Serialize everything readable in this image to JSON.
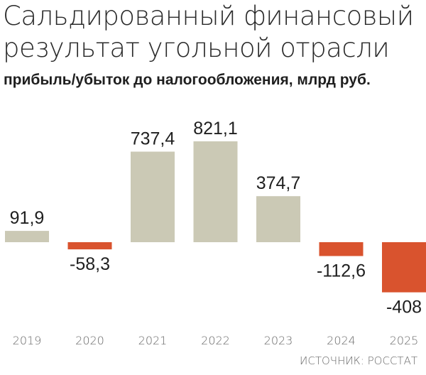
{
  "title": "Сальдированный финансовый результат угольной отрасли",
  "subtitle": "прибыль/убыток до налогообложения, млрд руб.",
  "source": "ИСТОЧНИК: РОССТАТ",
  "colors": {
    "positive": "#cbc9b5",
    "negative": "#d9532e"
  },
  "chart_data": {
    "type": "bar",
    "title": "Сальдированный финансовый результат угольной отрасли",
    "ylabel": "прибыль/убыток до налогообложения, млрд руб.",
    "xlabel": "",
    "categories": [
      "2019",
      "2020",
      "2021",
      "2022",
      "2023",
      "2024",
      "2025"
    ],
    "values": [
      91.9,
      -58.3,
      737.4,
      821.1,
      374.7,
      -112.6,
      -408
    ],
    "value_labels": [
      "91,9",
      "-58,3",
      "737,4",
      "821,1",
      "374,7",
      "-112,6",
      "-408"
    ],
    "ylim": [
      -408,
      821.1
    ],
    "grid": false,
    "legend": "none"
  }
}
